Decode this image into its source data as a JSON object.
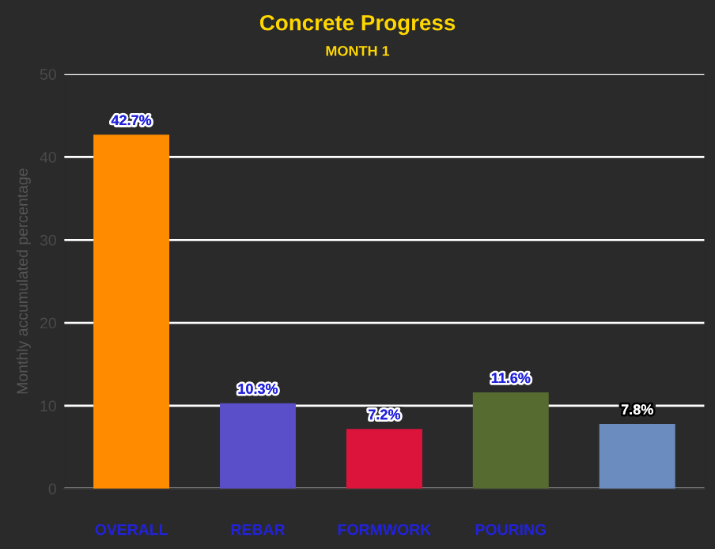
{
  "chart_data": {
    "type": "bar",
    "title": "Concrete Progress",
    "subtitle": "MONTH 1",
    "ylabel": "Monthly accumulated percentage",
    "categories": [
      "OVERALL",
      "REBAR",
      "FORMWORK",
      "POURING",
      null
    ],
    "values": [
      42.7,
      10.3,
      7.2,
      11.6,
      7.8
    ],
    "colors": [
      "#ff8c00",
      "#5a4fc8",
      "#dc143c",
      "#556b2f",
      "#6b8cbf"
    ],
    "value_labels": [
      "42.7%",
      "10.3%",
      "7.2%",
      "11.6%",
      "7.8%"
    ],
    "ylim": [
      0,
      50
    ],
    "yticks": [
      0,
      10,
      20,
      30,
      40,
      50
    ],
    "grid": "y",
    "legend": false
  }
}
